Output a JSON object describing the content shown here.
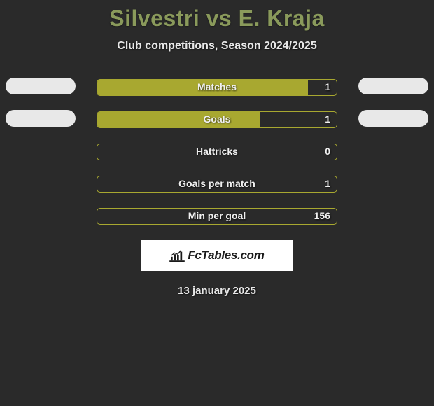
{
  "title": "Silvestri vs E. Kraja",
  "subtitle": "Club competitions, Season 2024/2025",
  "date": "13 january 2025",
  "logo_text": "FcTables.com",
  "colors": {
    "background": "#2a2a2a",
    "accent": "#a8a830",
    "title": "#8a9a5b",
    "pill_light": "#e8e8e8",
    "text": "#f0f0f0"
  },
  "stats": [
    {
      "label": "Matches",
      "value": "1",
      "fill_pct": 88,
      "left_pill": true,
      "right_pill": true,
      "pill_color_left": "#e8e8e8",
      "pill_color_right": "#e8e8e8"
    },
    {
      "label": "Goals",
      "value": "1",
      "fill_pct": 68,
      "left_pill": true,
      "right_pill": true,
      "pill_color_left": "#e8e8e8",
      "pill_color_right": "#e8e8e8"
    },
    {
      "label": "Hattricks",
      "value": "0",
      "fill_pct": 0,
      "left_pill": false,
      "right_pill": false
    },
    {
      "label": "Goals per match",
      "value": "1",
      "fill_pct": 0,
      "left_pill": false,
      "right_pill": false
    },
    {
      "label": "Min per goal",
      "value": "156",
      "fill_pct": 0,
      "left_pill": false,
      "right_pill": false
    }
  ]
}
